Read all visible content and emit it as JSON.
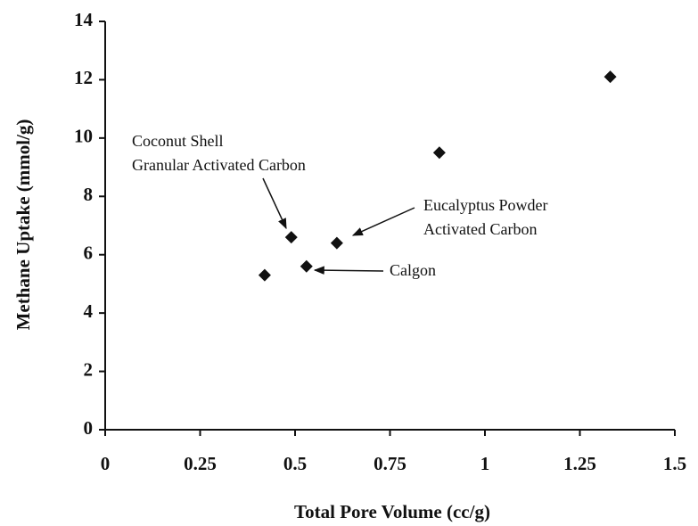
{
  "chart_data": {
    "type": "scatter",
    "x_label": "Total  Pore Volume (cc/g)",
    "y_label": "Methane Uptake (mmol/g)",
    "x": [
      0.42,
      0.49,
      0.53,
      0.61,
      0.88,
      1.33
    ],
    "values": [
      5.3,
      6.6,
      5.6,
      6.4,
      9.5,
      12.1
    ],
    "color": "#111111",
    "xlim": [
      0,
      1.5
    ],
    "xticks": [
      0,
      0.25,
      0.5,
      0.75,
      1,
      1.25,
      1.5
    ],
    "ylim": [
      0,
      14
    ],
    "yticks": [
      0,
      2,
      4,
      6,
      8,
      10,
      12,
      14
    ],
    "annotations": [
      [
        "Coconut Shell",
        "Granular Activated Carbon"
      ],
      [
        "Eucalyptus Powder",
        "Activated Carbon"
      ],
      [
        "Calgon"
      ]
    ]
  }
}
